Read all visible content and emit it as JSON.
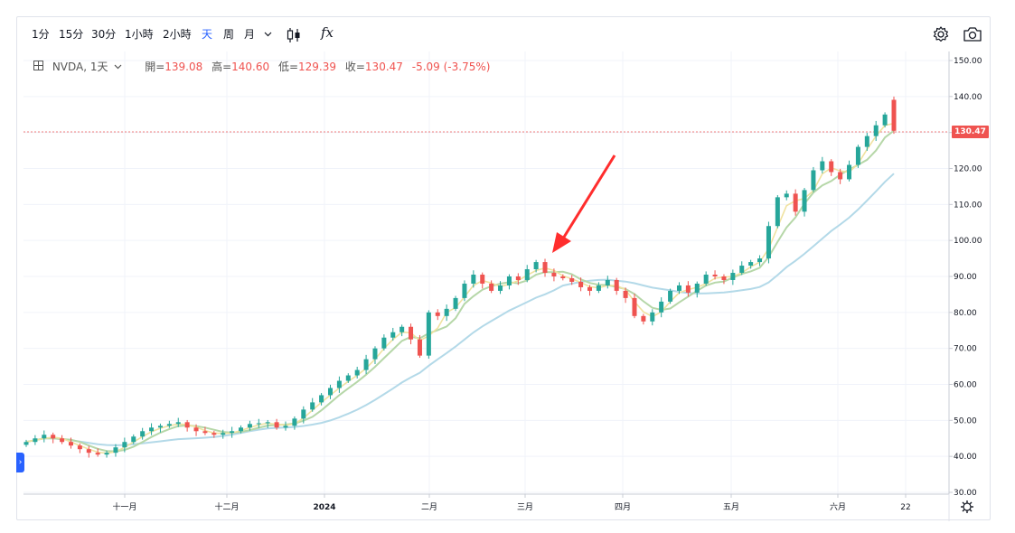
{
  "toolbar": {
    "timeframes": [
      "1分",
      "15分",
      "30分",
      "1小時",
      "2小時",
      "天",
      "周",
      "月"
    ],
    "active_timeframe": "天",
    "indicator_label": "fx"
  },
  "legend": {
    "symbol": "NVDA, 1天",
    "open_label": "開=",
    "open": "139.08",
    "high_label": "高=",
    "high": "140.60",
    "low_label": "低=",
    "low": "129.39",
    "close_label": "收=",
    "close": "130.47",
    "change": "-5.09 (-3.75%)"
  },
  "last_price_badge": "130.47",
  "colors": {
    "up": "#26a69a",
    "down": "#ef5350",
    "ma_fast": "#f0e2a0",
    "ma_mid": "#b6d7a8",
    "ma_slow": "#b3d9e8",
    "annotation": "#ff2d2d"
  },
  "chart_data": {
    "type": "candlestick",
    "y_axis_ticks": [
      30,
      40,
      50,
      60,
      70,
      80,
      90,
      100,
      110,
      120,
      130,
      140,
      150
    ],
    "y_axis_labels": [
      "30.00",
      "40.00",
      "50.00",
      "60.00",
      "70.00",
      "80.00",
      "90.00",
      "100.00",
      "110.00",
      "120.00",
      "130.00",
      "140.00",
      "150.00"
    ],
    "ylim": [
      30,
      150
    ],
    "x_axis_labels": [
      "十一月",
      "十二月",
      "2024",
      "二月",
      "三月",
      "四月",
      "五月",
      "六月",
      "22"
    ],
    "last_price": 130.47,
    "annotation": "arrow pointing to a peak candle in early March",
    "series": [
      {
        "name": "",
        "values": [
          44,
          45,
          46,
          45,
          44,
          43,
          42,
          41,
          40.5,
          41,
          42.5,
          44,
          45.5,
          47,
          48,
          48.5,
          49,
          49.5,
          48,
          47,
          46.5,
          46,
          46.5,
          47,
          48,
          49,
          49.2,
          49.5,
          48,
          48.5,
          50.5,
          53,
          55,
          57,
          59,
          61,
          62.5,
          64,
          67,
          70,
          73,
          74.5,
          76,
          72.5,
          68,
          80,
          79,
          81,
          84,
          88,
          90.5,
          88,
          86,
          87.5,
          90,
          89,
          92,
          94,
          91,
          90,
          89.5,
          88.5,
          87,
          86,
          87.5,
          89,
          86,
          84,
          79,
          77.5,
          80,
          83,
          86,
          87.5,
          85.5,
          88,
          90.5,
          90,
          89,
          91,
          93,
          94,
          95,
          104,
          112,
          113,
          108,
          114,
          119.5,
          122,
          119,
          117,
          121,
          126,
          129,
          132,
          135,
          130.47
        ]
      }
    ]
  }
}
